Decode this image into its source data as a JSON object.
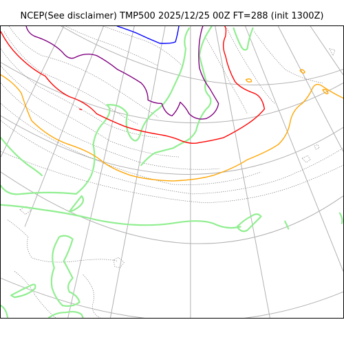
{
  "title": "NCEP(See disclaimer) TMP500 2025/12/25 00Z FT=288 (init 1300Z)",
  "colors": {
    "graticule": "#b0b0b0",
    "coastline": "#7a7a7a",
    "green_contour": "#90ee90",
    "orange_isotherm": "#ffa500",
    "red_isotherm": "#ff0000",
    "purple_isotherm": "#800080",
    "blue_isotherm": "#0000ff"
  },
  "layers": [
    {
      "name": "graticule",
      "color": "#b0b0b0"
    },
    {
      "name": "coastlines",
      "color": "#7a7a7a"
    },
    {
      "name": "green-contour",
      "color": "#90ee90"
    },
    {
      "name": "orange-isotherm",
      "color": "#ffa500"
    },
    {
      "name": "red-isotherm",
      "color": "#ff0000"
    },
    {
      "name": "purple-isotherm",
      "color": "#800080"
    },
    {
      "name": "blue-isotherm",
      "color": "#0000ff"
    }
  ]
}
